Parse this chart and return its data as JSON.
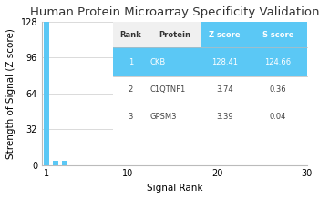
{
  "title": "Human Protein Microarray Specificity Validation",
  "xlabel": "Signal Rank",
  "ylabel": "Strength of Signal (Z score)",
  "xlim": [
    0.5,
    30
  ],
  "ylim": [
    0,
    128
  ],
  "yticks": [
    0,
    32,
    64,
    96,
    128
  ],
  "xticks": [
    1,
    10,
    20,
    30
  ],
  "bar_data": [
    [
      1,
      128.41
    ],
    [
      2,
      3.74
    ],
    [
      3,
      3.39
    ]
  ],
  "bar_color": "#5bc8f5",
  "bar_width": 0.6,
  "background_color": "#ffffff",
  "table_data": [
    [
      "Rank",
      "Protein",
      "Z score",
      "S score"
    ],
    [
      "1",
      "CKB",
      "128.41",
      "124.66"
    ],
    [
      "2",
      "C1QTNF1",
      "3.74",
      "0.36"
    ],
    [
      "3",
      "GPSM3",
      "3.39",
      "0.04"
    ]
  ],
  "table_header_bg": "#f0f0f0",
  "table_row1_bg": "#5bc8f5",
  "table_zscore_header_bg": "#5bc8f5",
  "table_row_other_bg": "#ffffff",
  "table_header_color": "#333333",
  "table_row1_color": "#ffffff",
  "table_other_color": "#444444",
  "title_fontsize": 9.5,
  "axis_fontsize": 7.5,
  "tick_fontsize": 7,
  "grid_color": "#cccccc"
}
